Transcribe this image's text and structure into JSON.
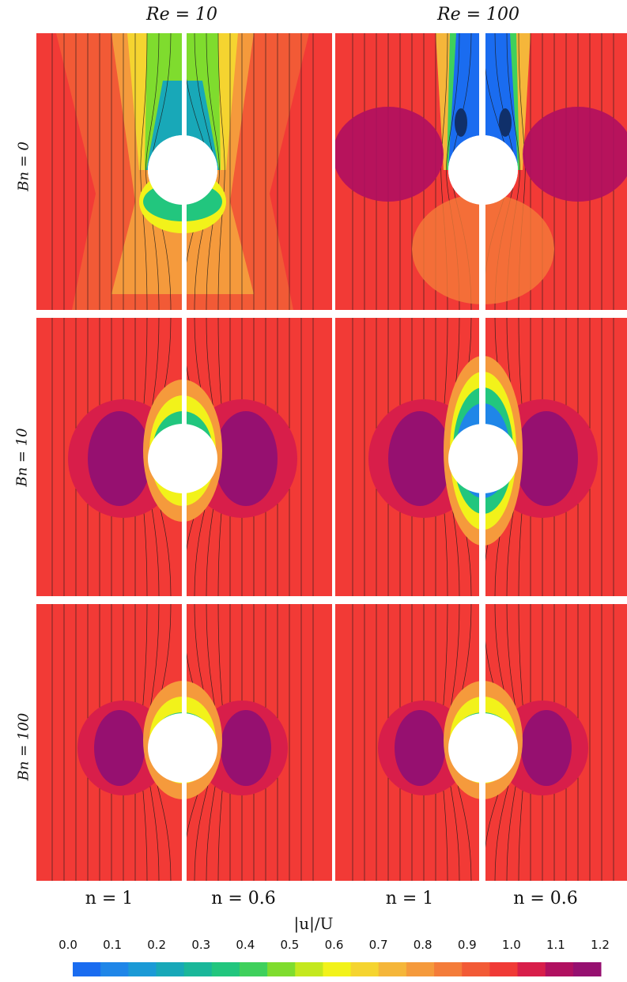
{
  "columns": [
    {
      "label": "Re = 10"
    },
    {
      "label": "Re = 100"
    }
  ],
  "rows": [
    {
      "label": "Bn = 0"
    },
    {
      "label": "Bn = 10"
    },
    {
      "label": "Bn = 100"
    }
  ],
  "bottom_labels": [
    "n = 1",
    "n = 0.6",
    "n = 1",
    "n = 0.6"
  ],
  "colorbar": {
    "title": "|u|/U",
    "ticks": [
      "0.0",
      "0.1",
      "0.2",
      "0.3",
      "0.4",
      "0.5",
      "0.6",
      "0.7",
      "0.8",
      "0.9",
      "1.0",
      "1.1",
      "1.2"
    ],
    "min": 0.0,
    "max": 1.2,
    "colors": [
      "#1a6cf0",
      "#1f86e8",
      "#1b9ad6",
      "#18a8b8",
      "#1ab79a",
      "#22c67e",
      "#3fd05c",
      "#7fdc2e",
      "#c4e81e",
      "#f2f21a",
      "#f5d430",
      "#f5b63a",
      "#f59a3c",
      "#f47c3a",
      "#f25a36",
      "#f03a36",
      "#d81e4a",
      "#b01060",
      "#961070"
    ]
  },
  "panel_colors": {
    "far_field": "#f23a36",
    "body": "#ffffff"
  }
}
